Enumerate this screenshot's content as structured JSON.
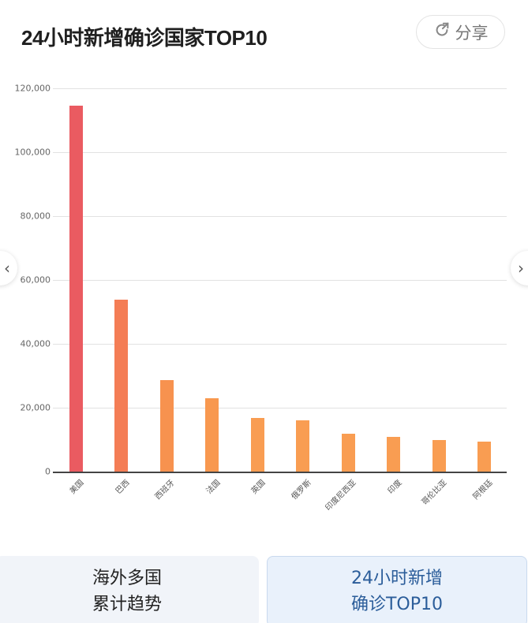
{
  "header": {
    "title": "24小时新增确诊国家TOP10",
    "share_label": "分享",
    "share_icon": "share-icon"
  },
  "navigation": {
    "prev_icon": "chevron-left-icon",
    "prev_glyph": "‹",
    "next_icon": "chevron-right-icon",
    "next_glyph": "›"
  },
  "tabs": [
    {
      "line1": "海外多国",
      "line2": "累计趋势",
      "active": false
    },
    {
      "line1": "24小时新增",
      "line2": "确诊TOP10",
      "active": true
    }
  ],
  "chart_data": {
    "type": "bar",
    "title": "24小时新增确诊国家TOP10",
    "xlabel": "",
    "ylabel": "",
    "categories": [
      "美国",
      "巴西",
      "西班牙",
      "法国",
      "英国",
      "俄罗斯",
      "印度尼西亚",
      "印度",
      "哥伦比亚",
      "阿根廷"
    ],
    "values": [
      114600,
      53800,
      28600,
      23000,
      16800,
      16000,
      11800,
      10900,
      9900,
      9400
    ],
    "ylim": [
      0,
      120000
    ],
    "yticks": [
      0,
      20000,
      40000,
      60000,
      80000,
      100000,
      120000
    ],
    "ytick_labels": [
      "0",
      "20,000",
      "40,000",
      "60,000",
      "80,000",
      "100,000",
      "120,000"
    ],
    "grid": true,
    "legend": null,
    "colors": [
      "#ea5b61",
      "#f47d55",
      "#f7924f",
      "#f8984f",
      "#f99d52",
      "#f99d52",
      "#f99d52",
      "#f99d52",
      "#f99d52",
      "#f99d52"
    ]
  }
}
